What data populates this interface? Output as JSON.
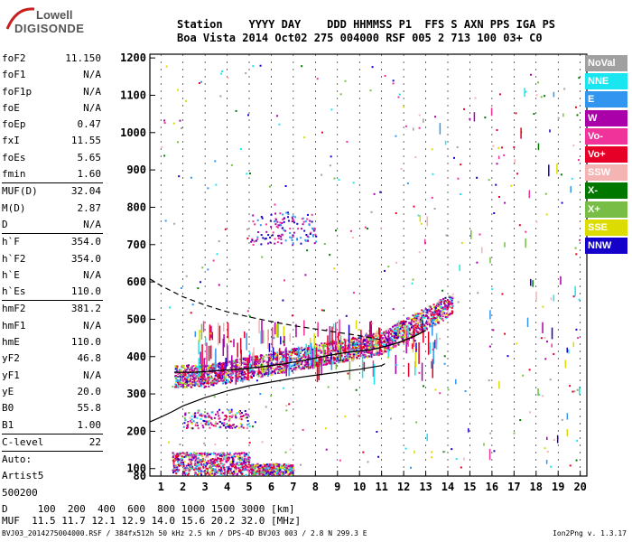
{
  "logo": {
    "line1": "Lowell",
    "line2": "DIGISONDE"
  },
  "header": {
    "line1": "Station    YYYY DAY    DDD HHMMSS P1  FFS S AXN PPS IGA PS",
    "line2": "Boa Vista 2014 Oct02 275 004000 RSF 005 2 713 100 03+ C0"
  },
  "params": [
    {
      "k": "foF2",
      "v": "11.150"
    },
    {
      "k": "foF1",
      "v": "N/A"
    },
    {
      "k": "foF1p",
      "v": "N/A"
    },
    {
      "k": "foE",
      "v": "N/A"
    },
    {
      "k": "foEp",
      "v": "0.47"
    },
    {
      "k": "fxI",
      "v": "11.55"
    },
    {
      "k": "foEs",
      "v": "5.65"
    },
    {
      "k": "fmin",
      "v": "1.60"
    },
    {
      "sep": true
    },
    {
      "k": "MUF(D)",
      "v": "32.04"
    },
    {
      "k": "M(D)",
      "v": "2.87"
    },
    {
      "k": "D",
      "v": "N/A"
    },
    {
      "sep": true
    },
    {
      "k": "h`F",
      "v": "354.0"
    },
    {
      "k": "h`F2",
      "v": "354.0"
    },
    {
      "k": "h`E",
      "v": "N/A"
    },
    {
      "k": "h`Es",
      "v": "110.0"
    },
    {
      "sep": true
    },
    {
      "k": "hmF2",
      "v": "381.2"
    },
    {
      "k": "hmF1",
      "v": "N/A"
    },
    {
      "k": "hmE",
      "v": "110.0"
    },
    {
      "k": "yF2",
      "v": "46.8"
    },
    {
      "k": "yF1",
      "v": "N/A"
    },
    {
      "k": "yE",
      "v": "20.0"
    },
    {
      "k": "B0",
      "v": "55.8"
    },
    {
      "k": "B1",
      "v": "1.00"
    },
    {
      "sep": true
    },
    {
      "k": "C-level",
      "v": "22"
    },
    {
      "sep": true
    },
    {
      "t": "Auto:"
    },
    {
      "t": "Artist5"
    },
    {
      "t": "500200"
    }
  ],
  "legend": [
    {
      "label": "NoVal",
      "color": "#a0a0a0"
    },
    {
      "label": "NNE",
      "color": "#19e6f0"
    },
    {
      "label": "E",
      "color": "#3296f0"
    },
    {
      "label": "W",
      "color": "#aa00aa"
    },
    {
      "label": "Vo-",
      "color": "#f0329b"
    },
    {
      "label": "Vo+",
      "color": "#e60028"
    },
    {
      "label": "SSW",
      "color": "#f5b4b4"
    },
    {
      "label": "X-",
      "color": "#007800"
    },
    {
      "label": "X+",
      "color": "#78be46"
    },
    {
      "label": "SSE",
      "color": "#dcdc00"
    },
    {
      "label": "NNW",
      "color": "#1400c8"
    }
  ],
  "bottom": {
    "line1": "D     100  200  400  600  800 1000 1500 3000 [km]",
    "line2": "MUF  11.5 11.7 12.1 12.9 14.0 15.6 20.2 32.0 [MHz]"
  },
  "footer": "BVJ03_2014275004000.RSF / 384fx512h 50 kHz 2.5 km / DPS-4D BVJ03 003 / 2.8 N 299.3 E",
  "version": "Ion2Png v. 1.3.17",
  "chart_data": {
    "type": "scatter",
    "xlim": [
      0.5,
      20.3
    ],
    "ylim": [
      80,
      1210
    ],
    "xticks": [
      1,
      2,
      3,
      4,
      5,
      6,
      7,
      8,
      9,
      10,
      11,
      12,
      13,
      14,
      15,
      16,
      17,
      18,
      19,
      20
    ],
    "yticks": [
      80,
      100,
      200,
      300,
      400,
      500,
      600,
      700,
      800,
      900,
      1000,
      1100,
      1200
    ],
    "grid": "vertical dashed at integer MHz",
    "profile_solid": [
      [
        0.5,
        225
      ],
      [
        1.0,
        238
      ],
      [
        1.5,
        252
      ],
      [
        2.0,
        268
      ],
      [
        3.0,
        290
      ],
      [
        4.0,
        308
      ],
      [
        5.0,
        322
      ],
      [
        6.0,
        332
      ],
      [
        7.0,
        342
      ],
      [
        8.0,
        350
      ],
      [
        9.0,
        358
      ],
      [
        10.0,
        366
      ],
      [
        10.6,
        372
      ],
      [
        11.0,
        376
      ],
      [
        11.15,
        381
      ]
    ],
    "profile_dashed": [
      [
        0.5,
        608
      ],
      [
        1.0,
        590
      ],
      [
        2.0,
        560
      ],
      [
        3.0,
        538
      ],
      [
        4.0,
        520
      ],
      [
        5.0,
        506
      ],
      [
        6.0,
        494
      ],
      [
        7.0,
        483
      ],
      [
        8.0,
        474
      ],
      [
        9.0,
        465
      ],
      [
        10.0,
        456
      ],
      [
        11.0,
        445
      ],
      [
        11.15,
        440
      ]
    ],
    "trace_black": [
      [
        1.6,
        358
      ],
      [
        2.5,
        358
      ],
      [
        3.5,
        362
      ],
      [
        4.5,
        366
      ],
      [
        5.5,
        372
      ],
      [
        6.5,
        380
      ],
      [
        7.5,
        390
      ],
      [
        8.5,
        402
      ],
      [
        9.5,
        412
      ],
      [
        10.5,
        418
      ],
      [
        11.2,
        428
      ],
      [
        11.8,
        438
      ],
      [
        12.5,
        455
      ],
      [
        13.0,
        470
      ]
    ]
  }
}
